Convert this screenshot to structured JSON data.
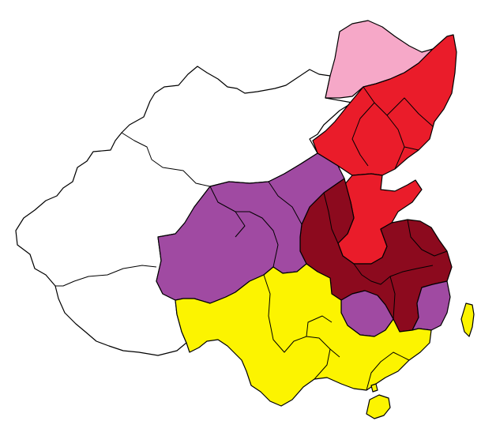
{
  "map": {
    "colors": {
      "background": "#ffffff",
      "outline": "#000000",
      "unshaded": "#ffffff",
      "pink": "#f6a8c8",
      "red": "#ea1c2a",
      "dark_red": "#8c0a1e",
      "purple": "#a04aa2",
      "yellow": "#fcf400"
    },
    "regions": [
      {
        "name": "west-regions",
        "color_key": "unshaded"
      },
      {
        "name": "far-northeast-region",
        "color_key": "pink"
      },
      {
        "name": "northeast-region",
        "color_key": "red"
      },
      {
        "name": "north-china-plain-region",
        "color_key": "red"
      },
      {
        "name": "central-plain-region",
        "color_key": "dark_red"
      },
      {
        "name": "northwest-central-region",
        "color_key": "purple"
      },
      {
        "name": "interior-south-region",
        "color_key": "purple"
      },
      {
        "name": "southeast-coast-region",
        "color_key": "purple"
      },
      {
        "name": "south-region",
        "color_key": "yellow"
      },
      {
        "name": "taiwan-island",
        "color_key": "yellow"
      },
      {
        "name": "hainan-island",
        "color_key": "yellow"
      }
    ]
  }
}
